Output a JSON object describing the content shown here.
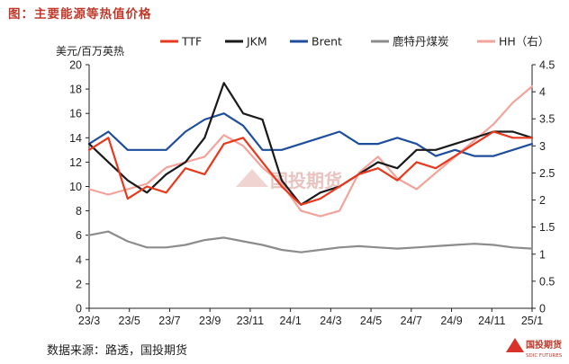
{
  "figure_title": "图：主要能源等热值价格",
  "source_note": "数据来源：路透，国投期货",
  "watermark_text": "国投期货",
  "logo": {
    "text_cn": "国投期货",
    "text_en": "SDIC FUTURES"
  },
  "chart_data": {
    "type": "line",
    "ylabel": "美元/百万英热",
    "ylim": [
      0,
      20
    ],
    "y_ticks": [
      "0",
      "2",
      "4",
      "6",
      "8",
      "10",
      "12",
      "14",
      "16",
      "18",
      "20"
    ],
    "y2lim": [
      0,
      4.5
    ],
    "y2_ticks": [
      "0",
      "0.5",
      "1",
      "1.5",
      "2",
      "2.5",
      "3",
      "3.5",
      "4",
      "4.5"
    ],
    "x_ticks": [
      "23/3",
      "23/5",
      "23/7",
      "23/9",
      "23/11",
      "24/1",
      "24/3",
      "24/5",
      "24/7",
      "24/9",
      "24/11",
      "25/1"
    ],
    "x": [
      "23/3",
      "23/4",
      "23/5",
      "23/6",
      "23/7",
      "23/8",
      "23/9",
      "23/10",
      "23/11",
      "23/12",
      "24/1",
      "24/2",
      "24/3",
      "24/4",
      "24/5",
      "24/6",
      "24/7",
      "24/8",
      "24/9",
      "24/10",
      "24/11",
      "24/12",
      "25/1",
      "25/2"
    ],
    "grid": false,
    "legend_position": "top",
    "series": [
      {
        "name": "TTF",
        "color": "#e8381e",
        "axis": "left",
        "values": [
          13.0,
          14.0,
          9.0,
          10.0,
          9.5,
          11.5,
          11.0,
          13.5,
          14.0,
          12.0,
          10.0,
          8.5,
          9.0,
          10.0,
          11.0,
          11.5,
          10.5,
          12.0,
          11.5,
          12.5,
          13.5,
          14.5,
          14.0,
          14.0
        ]
      },
      {
        "name": "JKM",
        "color": "#1a1a1a",
        "axis": "left",
        "values": [
          13.5,
          12.0,
          10.5,
          9.5,
          11.0,
          12.0,
          14.0,
          18.5,
          16.0,
          15.5,
          10.5,
          8.5,
          9.5,
          10.0,
          11.0,
          12.0,
          11.5,
          13.0,
          13.0,
          13.5,
          14.0,
          14.5,
          14.5,
          14.0
        ]
      },
      {
        "name": "Brent",
        "color": "#1f4e9c",
        "axis": "left",
        "values": [
          13.5,
          14.5,
          13.0,
          13.0,
          13.0,
          14.5,
          15.5,
          16.0,
          15.0,
          13.0,
          13.0,
          13.5,
          14.0,
          14.5,
          13.5,
          13.5,
          14.0,
          13.5,
          12.5,
          13.0,
          12.5,
          12.5,
          13.0,
          13.5
        ]
      },
      {
        "name": "鹿特丹煤炭",
        "color": "#8c8c8c",
        "axis": "left",
        "values": [
          6.0,
          6.3,
          5.5,
          5.0,
          5.0,
          5.2,
          5.6,
          5.8,
          5.5,
          5.2,
          4.8,
          4.6,
          4.8,
          5.0,
          5.1,
          5.0,
          4.9,
          5.0,
          5.1,
          5.2,
          5.3,
          5.2,
          5.0,
          4.9
        ]
      },
      {
        "name": "HH（右）",
        "color": "#f4a39a",
        "axis": "right",
        "values": [
          2.2,
          2.1,
          2.2,
          2.3,
          2.6,
          2.7,
          2.8,
          3.2,
          3.0,
          2.6,
          2.3,
          1.8,
          1.7,
          1.8,
          2.5,
          2.8,
          2.4,
          2.2,
          2.5,
          2.8,
          3.1,
          3.4,
          3.8,
          4.1
        ]
      }
    ]
  }
}
